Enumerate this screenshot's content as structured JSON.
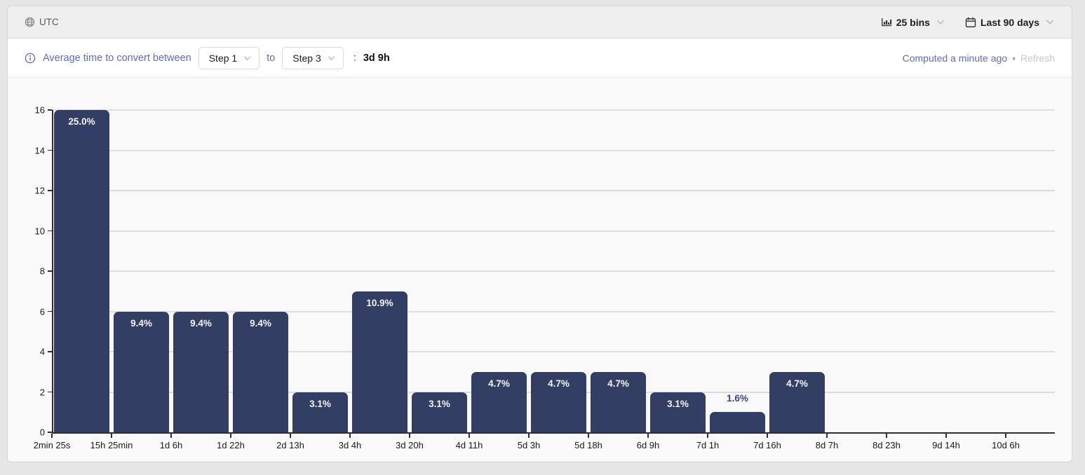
{
  "header": {
    "timezone_label": "UTC",
    "bins_label": "25 bins",
    "date_range_label": "Last 90 days"
  },
  "subheader": {
    "prefix_label": "Average time to convert between",
    "from_step": "Step 1",
    "to_word": "to",
    "to_step": "Step 3",
    "colon": ":",
    "average_value": "3d 9h",
    "computed_label": "Computed a minute ago",
    "separator": "•",
    "refresh_label": "Refresh"
  },
  "colors": {
    "accent_blue": "#5e6db8",
    "bar_fill": "#323e63",
    "bar_label_inside": "#f4f4f6",
    "bar_label_outside": "#3c4877",
    "axis": "#2f2f2f",
    "gridline": "#dedede",
    "disabled_text": "#c7c7cb",
    "header_bg": "#efefef",
    "chart_bg": "#f9f9fa"
  },
  "chart_data": {
    "type": "bar",
    "title": "",
    "xlabel": "",
    "ylabel": "",
    "x_tick_labels": [
      "2min 25s",
      "15h 25min",
      "1d 6h",
      "1d 22h",
      "2d 13h",
      "3d 4h",
      "3d 20h",
      "4d 11h",
      "5d 3h",
      "5d 18h",
      "6d 9h",
      "7d 1h",
      "7d 16h",
      "8d 7h",
      "8d 23h",
      "9d 14h",
      "10d 6h"
    ],
    "values": [
      16,
      6,
      6,
      6,
      2,
      7,
      2,
      3,
      3,
      3,
      2,
      1,
      3,
      0,
      0,
      0,
      0
    ],
    "bar_labels": [
      "25.0%",
      "9.4%",
      "9.4%",
      "9.4%",
      "3.1%",
      "10.9%",
      "3.1%",
      "4.7%",
      "4.7%",
      "4.7%",
      "3.1%",
      "1.6%",
      "4.7%",
      "",
      "",
      "",
      ""
    ],
    "y_ticks": [
      0,
      2,
      4,
      6,
      8,
      10,
      12,
      14,
      16
    ],
    "ylim": [
      0,
      16
    ],
    "grid": true,
    "legend": false,
    "bar_color": "#323e63"
  }
}
